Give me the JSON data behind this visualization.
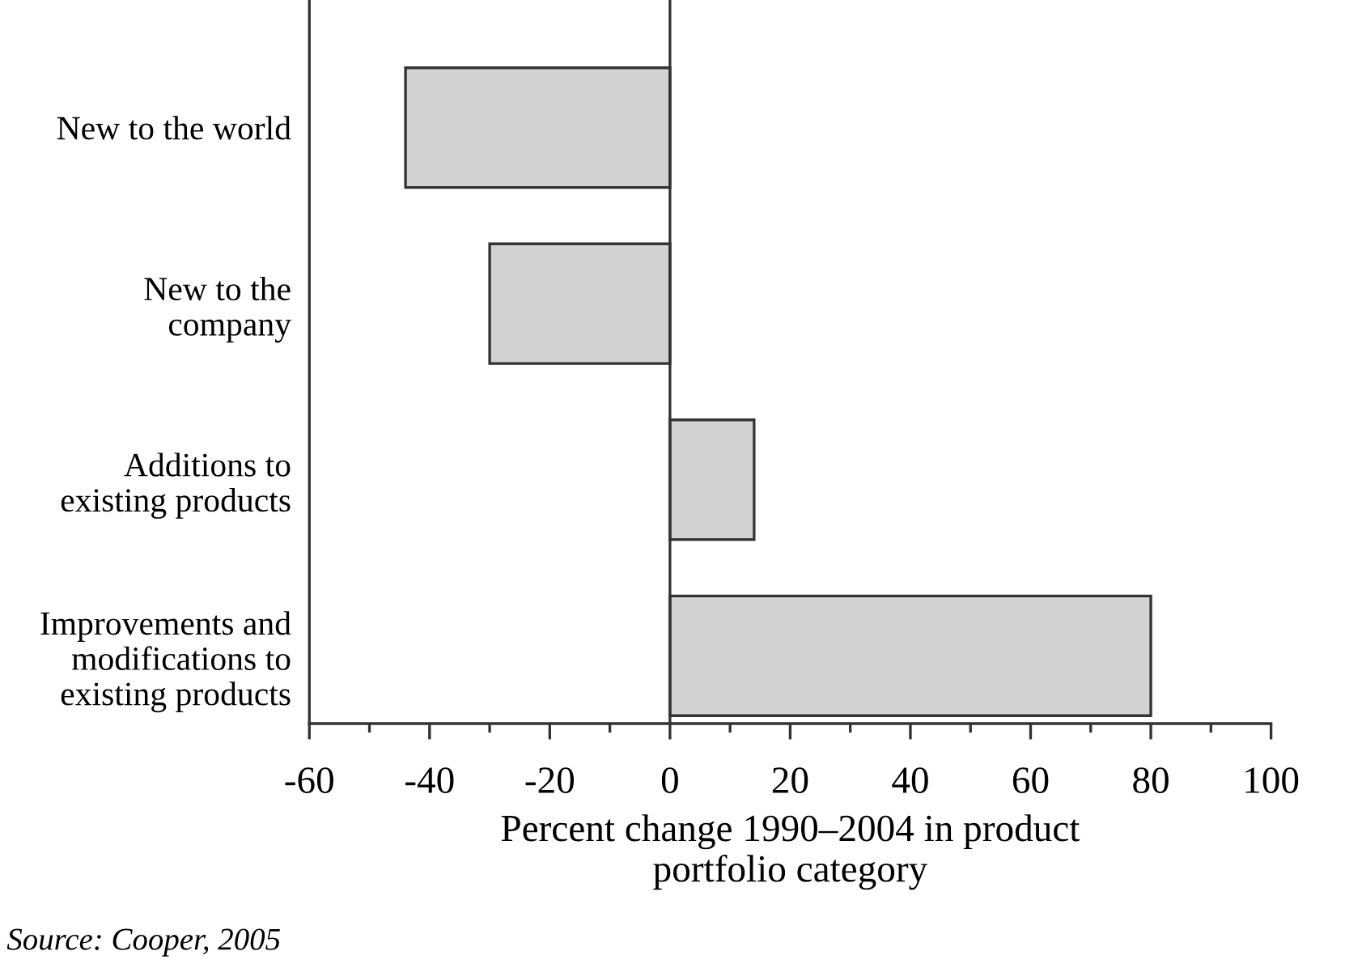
{
  "chart_data": {
    "type": "bar",
    "orientation": "horizontal",
    "categories": [
      "New to the world",
      "New to the\ncompany",
      "Additions to\nexisting products",
      "Improvements and\nmodifications to\nexisting products"
    ],
    "values": [
      -44,
      -30,
      14,
      80
    ],
    "color": "#d1d2d4",
    "xlabel": "Percent change 1990–2004 in product\nportfolio category",
    "xlim": [
      -60,
      100
    ],
    "xticks": [
      -60,
      {
        "value": -50,
        "label": null
      },
      -40,
      {
        "value": -30,
        "label": null
      },
      -20,
      {
        "value": -10,
        "label": null
      },
      0,
      {
        "value": 10,
        "label": null
      },
      20,
      {
        "value": 30,
        "label": null
      },
      40,
      {
        "value": 50,
        "label": null
      },
      60,
      {
        "value": 70,
        "label": null
      },
      80,
      {
        "value": 90,
        "label": null
      },
      100
    ],
    "ref_lines": [
      {
        "axis": "x",
        "value": 0,
        "color": "#333333"
      }
    ],
    "annotations": [
      "Source: Cooper, 2005"
    ],
    "grid": false,
    "legend": false
  }
}
